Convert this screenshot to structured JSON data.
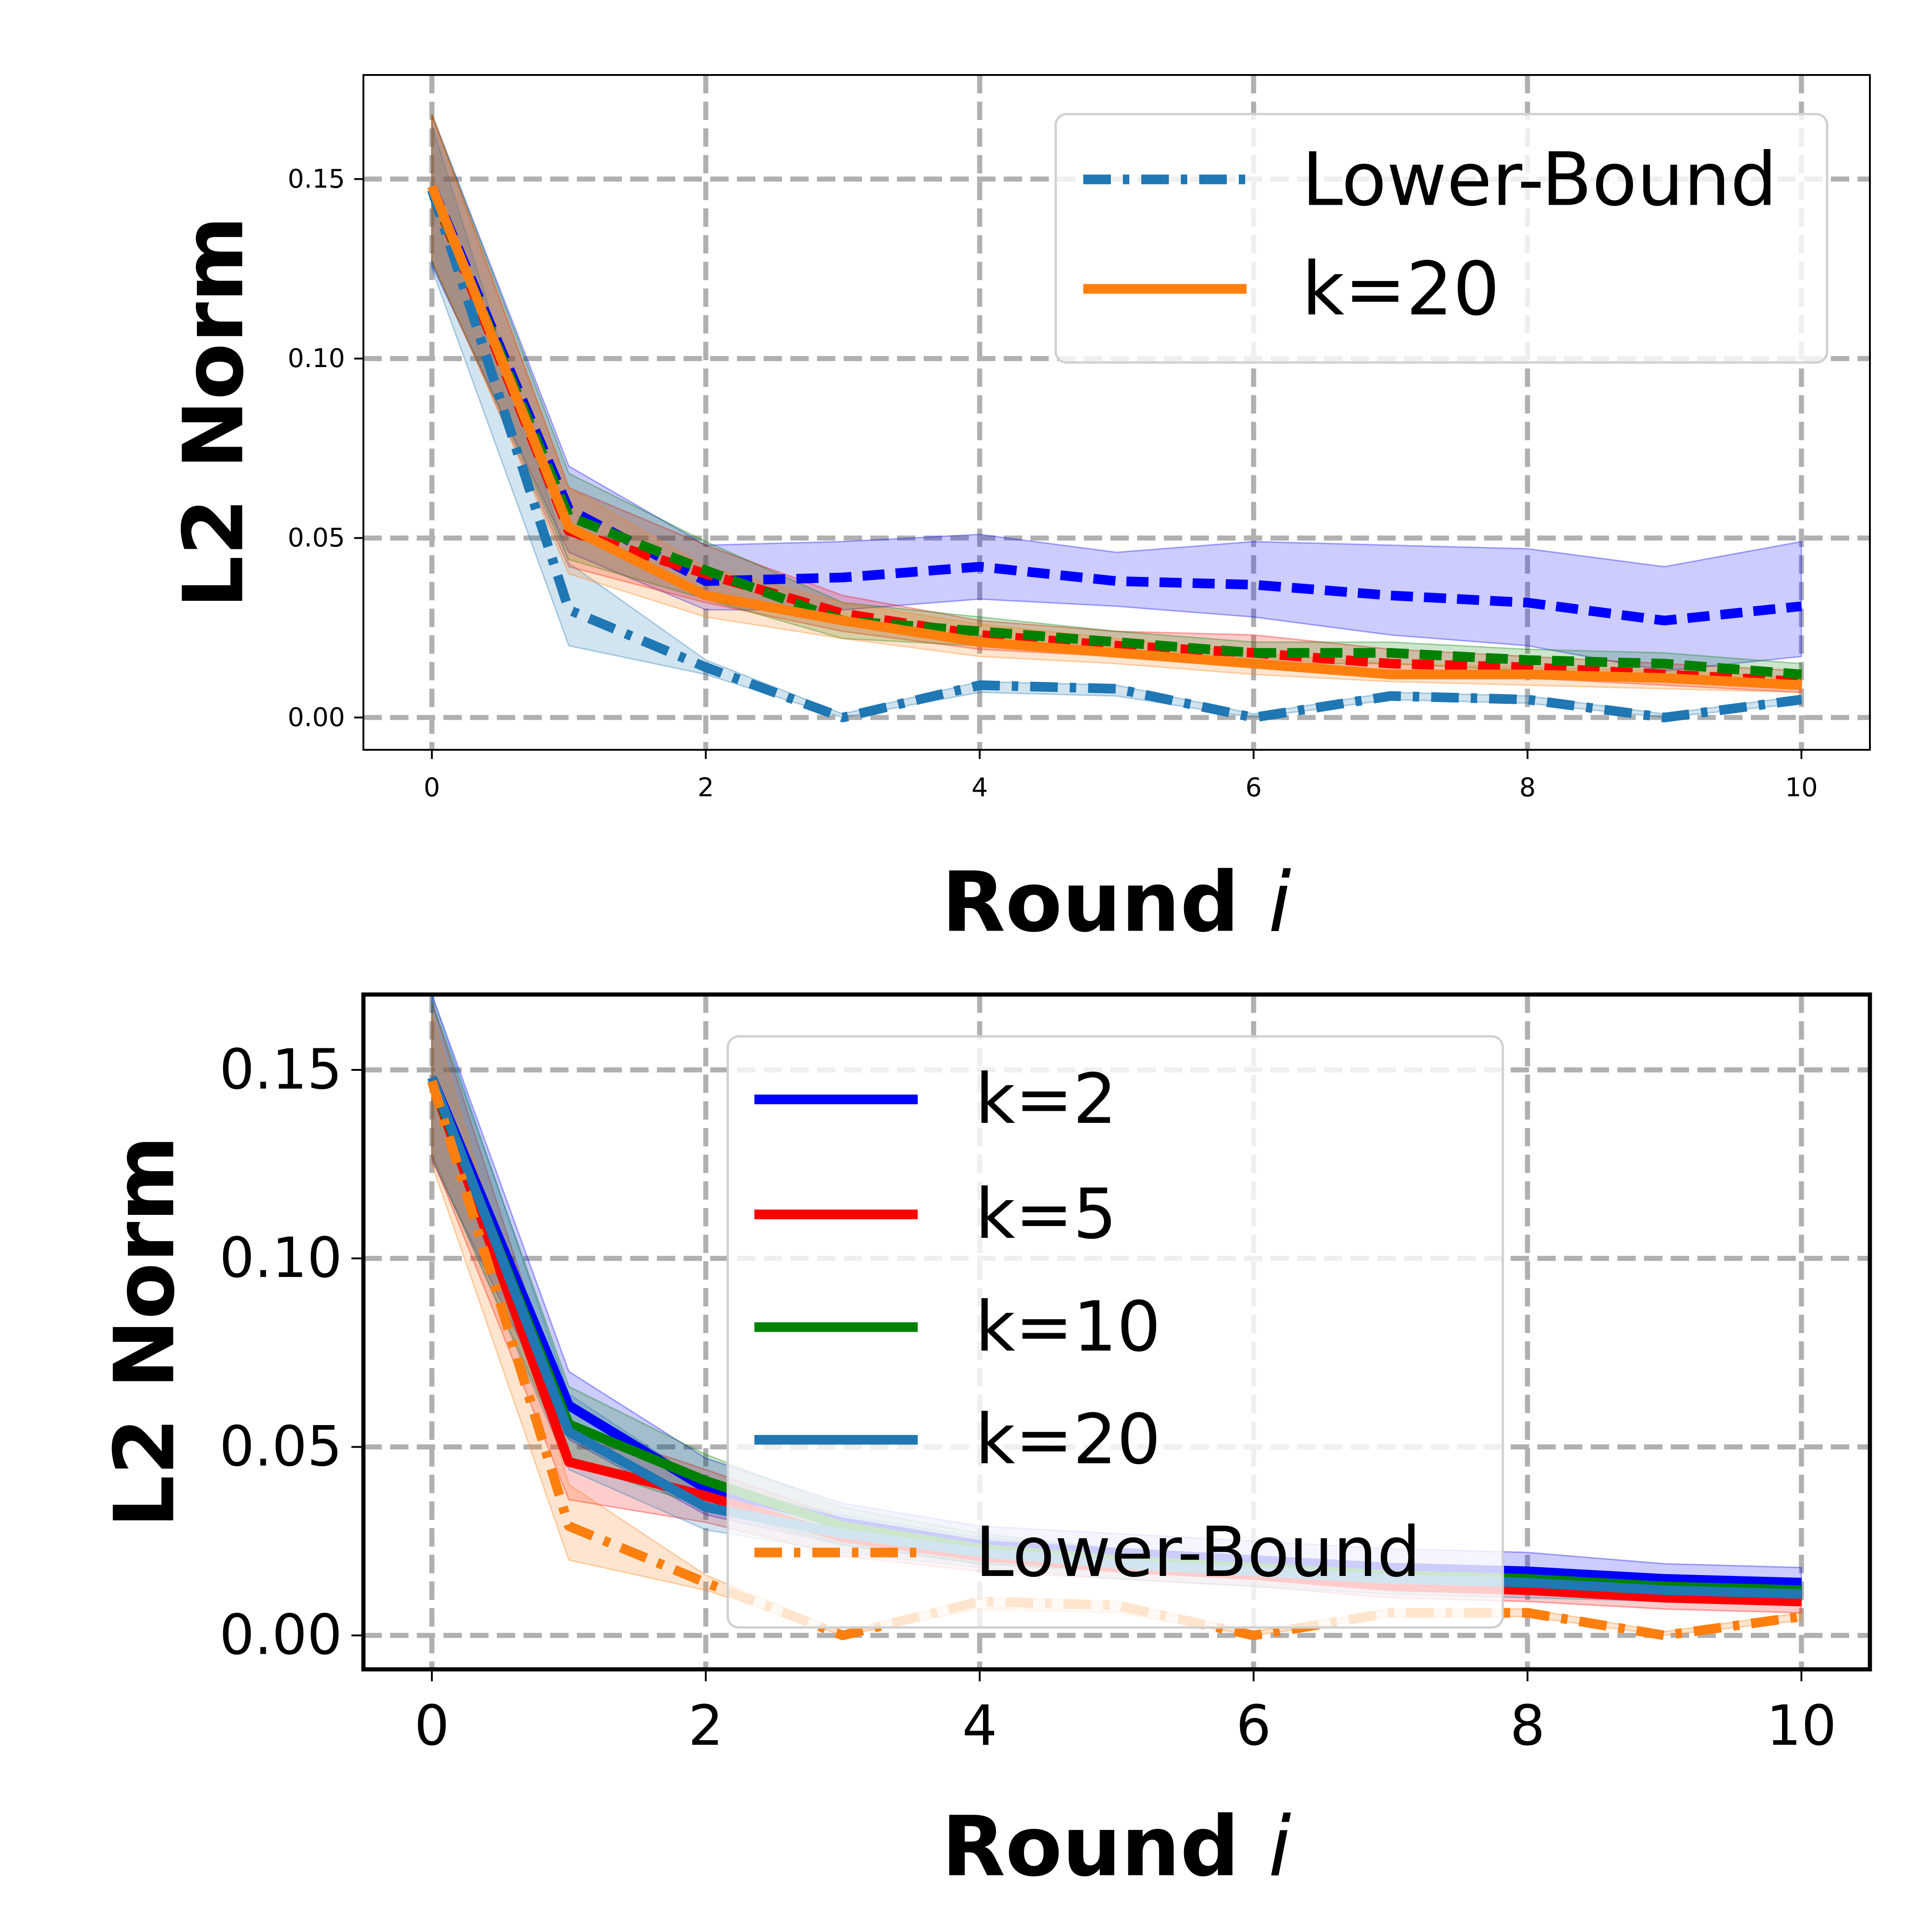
{
  "chart_data": [
    {
      "type": "line",
      "xlabel": "Round",
      "xlabel_var": "i",
      "ylabel": "L2 Norm",
      "xlim": [
        -0.5,
        10.5
      ],
      "ylim": [
        -0.009,
        0.179
      ],
      "x_ticks": [
        "0",
        "2",
        "4",
        "6",
        "8",
        "10"
      ],
      "y_ticks": [
        "0.00",
        "0.05",
        "0.10",
        "0.15"
      ],
      "x_tick_values": [
        0,
        2,
        4,
        6,
        8,
        10
      ],
      "y_tick_values": [
        0,
        0.05,
        0.1,
        0.15
      ],
      "grid": true,
      "legend_position": "top-right",
      "legend": [
        {
          "label": "Lower-Bound",
          "color": "#1f77b4",
          "style": "dashdot"
        },
        {
          "label": "k=20",
          "color": "#ff7f0e",
          "style": "solid"
        }
      ],
      "x": [
        0,
        1,
        2,
        3,
        4,
        5,
        6,
        7,
        8,
        9,
        10
      ],
      "series": [
        {
          "color": "#0000ff",
          "style": "dashed",
          "values": [
            0.148,
            0.058,
            0.038,
            0.039,
            0.042,
            0.038,
            0.037,
            0.034,
            0.032,
            0.027,
            0.031
          ],
          "lower": [
            0.126,
            0.046,
            0.03,
            0.03,
            0.033,
            0.031,
            0.028,
            0.023,
            0.02,
            0.013,
            0.017
          ],
          "upper": [
            0.168,
            0.07,
            0.048,
            0.049,
            0.051,
            0.046,
            0.049,
            0.048,
            0.047,
            0.042,
            0.049
          ]
        },
        {
          "color": "#ff0000",
          "style": "dashed",
          "values": [
            0.147,
            0.052,
            0.04,
            0.029,
            0.023,
            0.02,
            0.018,
            0.015,
            0.014,
            0.012,
            0.01
          ],
          "lower": [
            0.127,
            0.042,
            0.032,
            0.024,
            0.019,
            0.017,
            0.015,
            0.012,
            0.011,
            0.009,
            0.007
          ],
          "upper": [
            0.168,
            0.064,
            0.048,
            0.034,
            0.027,
            0.024,
            0.023,
            0.019,
            0.017,
            0.015,
            0.013
          ]
        },
        {
          "color": "#008000",
          "style": "dashed",
          "values": [
            0.147,
            0.056,
            0.041,
            0.027,
            0.024,
            0.021,
            0.018,
            0.018,
            0.016,
            0.015,
            0.012
          ],
          "lower": [
            0.127,
            0.044,
            0.033,
            0.022,
            0.02,
            0.018,
            0.015,
            0.015,
            0.013,
            0.012,
            0.009
          ],
          "upper": [
            0.168,
            0.068,
            0.049,
            0.032,
            0.028,
            0.024,
            0.021,
            0.021,
            0.019,
            0.018,
            0.015
          ]
        },
        {
          "color": "#1f77b4",
          "style": "dashdot",
          "values": [
            0.147,
            0.03,
            0.014,
            0.0,
            0.009,
            0.008,
            0.0,
            0.006,
            0.005,
            0.0,
            0.005
          ],
          "lower": [
            0.125,
            0.02,
            0.012,
            0.0,
            0.007,
            0.006,
            0.0,
            0.005,
            0.004,
            0.0,
            0.004
          ],
          "upper": [
            0.165,
            0.043,
            0.016,
            0.001,
            0.01,
            0.009,
            0.001,
            0.007,
            0.006,
            0.001,
            0.006
          ]
        },
        {
          "color": "#ff7f0e",
          "style": "solid",
          "values": [
            0.148,
            0.053,
            0.034,
            0.027,
            0.021,
            0.018,
            0.015,
            0.012,
            0.012,
            0.011,
            0.009
          ],
          "lower": [
            0.128,
            0.04,
            0.028,
            0.022,
            0.017,
            0.015,
            0.012,
            0.01,
            0.009,
            0.008,
            0.007
          ],
          "upper": [
            0.168,
            0.064,
            0.042,
            0.032,
            0.026,
            0.022,
            0.018,
            0.015,
            0.014,
            0.013,
            0.011
          ]
        }
      ]
    },
    {
      "type": "line",
      "xlabel": "Round",
      "xlabel_var": "i",
      "ylabel": "L2 Norm",
      "xlim": [
        -0.5,
        10.5
      ],
      "ylim": [
        -0.009,
        0.17
      ],
      "x_ticks": [
        "0",
        "2",
        "4",
        "6",
        "8",
        "10"
      ],
      "y_ticks": [
        "0.00",
        "0.05",
        "0.10",
        "0.15"
      ],
      "x_tick_values": [
        0,
        2,
        4,
        6,
        8,
        10
      ],
      "y_tick_values": [
        0,
        0.05,
        0.1,
        0.15
      ],
      "grid": true,
      "legend_position": "top-center",
      "x": [
        0,
        1,
        2,
        3,
        4,
        5,
        6,
        7,
        8,
        9,
        10
      ],
      "series": [
        {
          "name": "k=2",
          "color": "#0000ff",
          "style": "solid",
          "values": [
            0.148,
            0.061,
            0.039,
            0.03,
            0.024,
            0.022,
            0.02,
            0.018,
            0.017,
            0.015,
            0.014
          ],
          "lower": [
            0.126,
            0.052,
            0.032,
            0.024,
            0.019,
            0.017,
            0.015,
            0.013,
            0.012,
            0.011,
            0.01
          ],
          "upper": [
            0.17,
            0.07,
            0.047,
            0.035,
            0.029,
            0.027,
            0.025,
            0.023,
            0.022,
            0.019,
            0.018
          ]
        },
        {
          "name": "k=5",
          "color": "#ff0000",
          "style": "solid",
          "values": [
            0.147,
            0.046,
            0.037,
            0.026,
            0.021,
            0.018,
            0.016,
            0.013,
            0.012,
            0.01,
            0.009
          ],
          "lower": [
            0.127,
            0.036,
            0.03,
            0.021,
            0.017,
            0.015,
            0.013,
            0.01,
            0.009,
            0.007,
            0.006
          ],
          "upper": [
            0.168,
            0.056,
            0.044,
            0.031,
            0.025,
            0.022,
            0.019,
            0.016,
            0.015,
            0.013,
            0.012
          ]
        },
        {
          "name": "k=10",
          "color": "#008000",
          "style": "solid",
          "values": [
            0.147,
            0.056,
            0.041,
            0.029,
            0.023,
            0.02,
            0.018,
            0.016,
            0.015,
            0.013,
            0.012
          ],
          "lower": [
            0.127,
            0.046,
            0.034,
            0.024,
            0.019,
            0.017,
            0.015,
            0.013,
            0.012,
            0.01,
            0.009
          ],
          "upper": [
            0.168,
            0.066,
            0.048,
            0.034,
            0.027,
            0.023,
            0.021,
            0.019,
            0.018,
            0.016,
            0.015
          ]
        },
        {
          "name": "k=20",
          "color": "#1f77b4",
          "style": "solid",
          "values": [
            0.148,
            0.054,
            0.034,
            0.027,
            0.022,
            0.019,
            0.017,
            0.015,
            0.014,
            0.012,
            0.011
          ],
          "lower": [
            0.128,
            0.044,
            0.028,
            0.022,
            0.018,
            0.015,
            0.013,
            0.011,
            0.01,
            0.009,
            0.008
          ],
          "upper": [
            0.17,
            0.064,
            0.04,
            0.032,
            0.026,
            0.023,
            0.021,
            0.019,
            0.018,
            0.016,
            0.014
          ]
        },
        {
          "name": "Lower-Bound",
          "color": "#ff7f0e",
          "style": "dashdot",
          "values": [
            0.147,
            0.029,
            0.014,
            0.0,
            0.009,
            0.008,
            0.0,
            0.006,
            0.006,
            0.0,
            0.005
          ],
          "lower": [
            0.125,
            0.02,
            0.012,
            0.0,
            0.007,
            0.006,
            0.0,
            0.005,
            0.005,
            0.0,
            0.004
          ],
          "upper": [
            0.165,
            0.04,
            0.016,
            0.001,
            0.01,
            0.009,
            0.001,
            0.007,
            0.007,
            0.001,
            0.006
          ]
        }
      ]
    }
  ]
}
